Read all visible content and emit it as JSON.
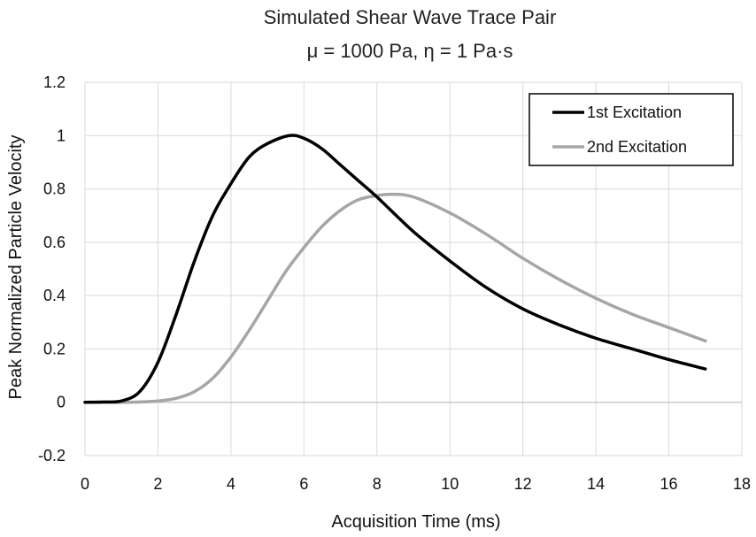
{
  "chart_data": {
    "type": "line",
    "title": "Simulated Shear Wave Trace Pair",
    "subtitle": "μ = 1000 Pa, η = 1 Pa·s",
    "xlabel": "Acquisition Time (ms)",
    "ylabel": "Peak Normalized Particle Velocity",
    "xlim": [
      0,
      18
    ],
    "ylim": [
      -0.2,
      1.2
    ],
    "x_ticks": [
      0,
      2,
      4,
      6,
      8,
      10,
      12,
      14,
      16,
      18
    ],
    "y_ticks": [
      -0.2,
      0,
      0.2,
      0.4,
      0.6,
      0.8,
      1,
      1.2
    ],
    "x_tick_labels": [
      "0",
      "2",
      "4",
      "6",
      "8",
      "10",
      "12",
      "14",
      "16",
      "18"
    ],
    "y_tick_labels": [
      "-0.2",
      "0",
      "0.2",
      "0.4",
      "0.6",
      "0.8",
      "1",
      "1.2"
    ],
    "grid": true,
    "legend_position": "top-right",
    "series": [
      {
        "name": "1st Excitation",
        "color": "#000000",
        "x": [
          0,
          0.5,
          1.0,
          1.5,
          2.0,
          2.5,
          3.0,
          3.5,
          4.0,
          4.5,
          5.0,
          5.6,
          6.0,
          6.5,
          7.0,
          7.5,
          8.0,
          9.0,
          10.0,
          11.0,
          12.0,
          13.0,
          14.0,
          15.0,
          16.0,
          17.0
        ],
        "y": [
          0,
          0.001,
          0.005,
          0.04,
          0.15,
          0.33,
          0.53,
          0.7,
          0.82,
          0.92,
          0.97,
          1.0,
          0.99,
          0.95,
          0.89,
          0.83,
          0.77,
          0.64,
          0.53,
          0.43,
          0.35,
          0.29,
          0.24,
          0.2,
          0.16,
          0.125
        ]
      },
      {
        "name": "2nd Excitation",
        "color": "#a6a6a6",
        "x": [
          0,
          1.0,
          1.5,
          2.0,
          2.5,
          3.0,
          3.5,
          4.0,
          4.5,
          5.0,
          5.5,
          6.0,
          6.5,
          7.0,
          7.5,
          8.0,
          8.4,
          9.0,
          10.0,
          11.0,
          12.0,
          13.0,
          14.0,
          15.0,
          16.0,
          17.0
        ],
        "y": [
          0,
          0,
          0.001,
          0.005,
          0.015,
          0.04,
          0.09,
          0.17,
          0.27,
          0.38,
          0.49,
          0.58,
          0.66,
          0.72,
          0.76,
          0.775,
          0.78,
          0.77,
          0.71,
          0.63,
          0.54,
          0.46,
          0.39,
          0.33,
          0.28,
          0.23
        ]
      }
    ]
  }
}
